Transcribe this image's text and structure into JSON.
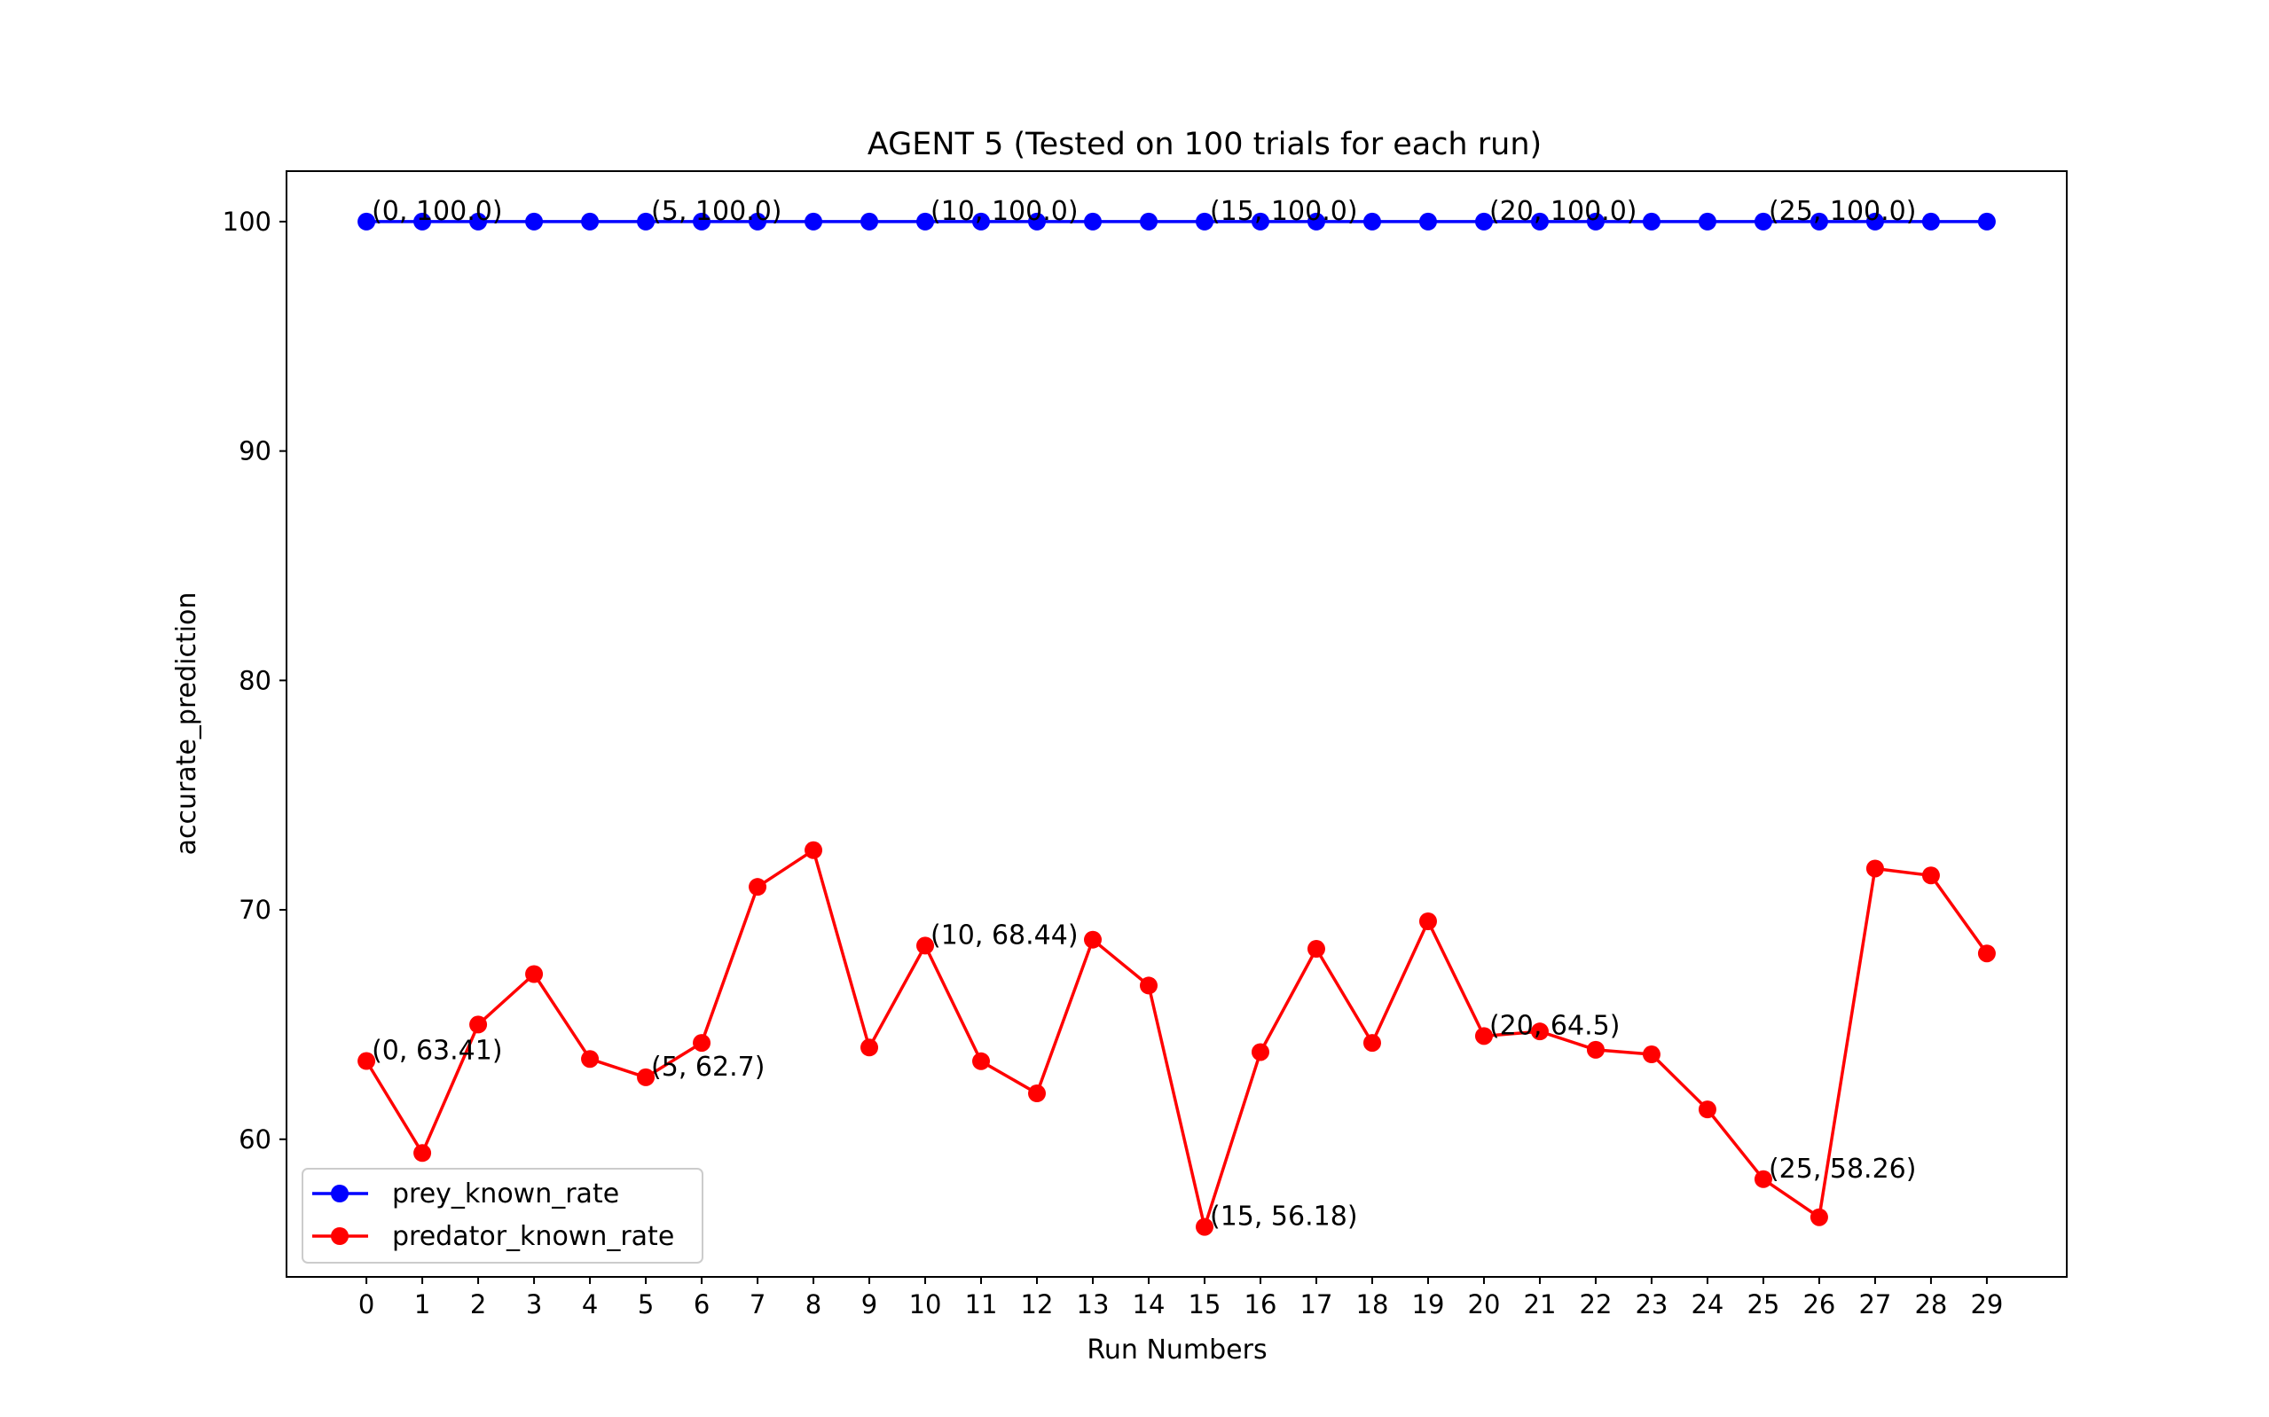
{
  "chart_data": {
    "type": "line",
    "title": "AGENT 5 (Tested on 100 trials for each run)",
    "xlabel": "Run Numbers",
    "ylabel": "accurate_prediction",
    "x": [
      0,
      1,
      2,
      3,
      4,
      5,
      6,
      7,
      8,
      9,
      10,
      11,
      12,
      13,
      14,
      15,
      16,
      17,
      18,
      19,
      20,
      21,
      22,
      23,
      24,
      25,
      26,
      27,
      28,
      29
    ],
    "xticks": [
      0,
      1,
      2,
      3,
      4,
      5,
      6,
      7,
      8,
      9,
      10,
      11,
      12,
      13,
      14,
      15,
      16,
      17,
      18,
      19,
      20,
      21,
      22,
      23,
      24,
      25,
      26,
      27,
      28,
      29
    ],
    "yticks": [
      60,
      70,
      80,
      90,
      100
    ],
    "xlim": [
      -1.43,
      30.43
    ],
    "ylim": [
      54.0,
      102.2
    ],
    "grid": false,
    "legend_position": "lower-left",
    "series": [
      {
        "name": "prey_known_rate",
        "color": "#0000ff",
        "marker": "circle",
        "values": [
          100,
          100,
          100,
          100,
          100,
          100,
          100,
          100,
          100,
          100,
          100,
          100,
          100,
          100,
          100,
          100,
          100,
          100,
          100,
          100,
          100,
          100,
          100,
          100,
          100,
          100,
          100,
          100,
          100,
          100
        ],
        "annotations": [
          {
            "x": 0,
            "y": 100,
            "text": "(0, 100.0)"
          },
          {
            "x": 5,
            "y": 100,
            "text": "(5, 100.0)"
          },
          {
            "x": 10,
            "y": 100,
            "text": "(10, 100.0)"
          },
          {
            "x": 15,
            "y": 100,
            "text": "(15, 100.0)"
          },
          {
            "x": 20,
            "y": 100,
            "text": "(20, 100.0)"
          },
          {
            "x": 25,
            "y": 100,
            "text": "(25, 100.0)"
          }
        ]
      },
      {
        "name": "predator_known_rate",
        "color": "#ff0000",
        "marker": "circle",
        "values": [
          63.41,
          59.4,
          65.0,
          67.2,
          63.5,
          62.7,
          64.2,
          71.0,
          72.6,
          64.0,
          68.44,
          63.4,
          62.0,
          68.7,
          66.7,
          56.18,
          63.8,
          68.3,
          64.2,
          69.5,
          64.5,
          64.7,
          63.9,
          63.7,
          61.3,
          58.26,
          56.6,
          71.8,
          71.5,
          68.1
        ],
        "annotations": [
          {
            "x": 0,
            "y": 63.41,
            "text": "(0, 63.41)"
          },
          {
            "x": 5,
            "y": 62.7,
            "text": "(5, 62.7)"
          },
          {
            "x": 10,
            "y": 68.44,
            "text": "(10, 68.44)"
          },
          {
            "x": 15,
            "y": 56.18,
            "text": "(15, 56.18)"
          },
          {
            "x": 20,
            "y": 64.5,
            "text": "(20, 64.5)"
          },
          {
            "x": 25,
            "y": 58.26,
            "text": "(25, 58.26)"
          }
        ]
      }
    ]
  }
}
